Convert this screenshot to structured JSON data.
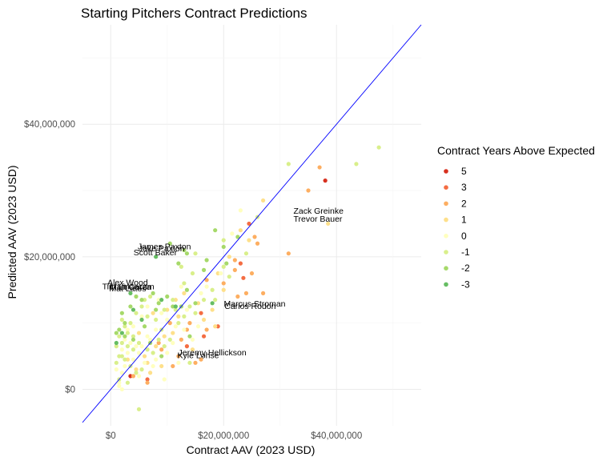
{
  "chart_data": {
    "type": "scatter",
    "title": "Starting Pitchers Contract Predictions",
    "xlabel": "Contract AAV (2023 USD)",
    "ylabel": "Predicted AAV (2023 USD)",
    "xlim": [
      -5000000,
      55000000
    ],
    "ylim": [
      -5500000,
      55000000
    ],
    "x_ticks": [
      0,
      20000000,
      40000000
    ],
    "x_tick_labels": [
      "$0",
      "$20,000,000",
      "$40,000,000"
    ],
    "y_ticks": [
      0,
      20000000,
      40000000
    ],
    "y_tick_labels": [
      "$0",
      "$20,000,000",
      "$40,000,000"
    ],
    "grid": true,
    "reference_line": {
      "slope": 1,
      "intercept": 0,
      "color": "#0000ff"
    },
    "legend": {
      "title": "Contract Years Above Expected",
      "position": "right",
      "entries": [
        {
          "label": "5",
          "color": "#d7301f"
        },
        {
          "label": "3",
          "color": "#f46d43"
        },
        {
          "label": "2",
          "color": "#fdae61"
        },
        {
          "label": "1",
          "color": "#fee08b"
        },
        {
          "label": "0",
          "color": "#ffffbf"
        },
        {
          "label": "-1",
          "color": "#d9ef8b"
        },
        {
          "label": "-2",
          "color": "#a6d96a"
        },
        {
          "label": "-3",
          "color": "#66bd63"
        }
      ]
    },
    "annotations": [
      {
        "label": "Zack Greinke",
        "x": 36800000,
        "y": 27000000
      },
      {
        "label": "Trevor Bauer",
        "x": 36700000,
        "y": 25800000
      },
      {
        "label": "James Paxton",
        "x": 9500000,
        "y": 21600000
      },
      {
        "label": "Jake Paxton",
        "x": 9000000,
        "y": 21300000
      },
      {
        "label": "Scott Baker",
        "x": 7900000,
        "y": 20700000
      },
      {
        "label": "Alex Wood",
        "x": 3000000,
        "y": 16200000
      },
      {
        "label": "Tim Lincecum",
        "x": 3100000,
        "y": 15600000
      },
      {
        "label": "Matt Garza",
        "x": 3500000,
        "y": 15500000
      },
      {
        "label": "Mat Latos",
        "x": 3000000,
        "y": 15300000
      },
      {
        "label": "Marcus Stroman",
        "x": 25500000,
        "y": 13000000
      },
      {
        "label": "Carlos Rodon",
        "x": 24700000,
        "y": 12600000
      },
      {
        "label": "Jeremy Hellickson",
        "x": 18000000,
        "y": 5600000
      },
      {
        "label": "Kyle Lohse",
        "x": 15500000,
        "y": 5200000
      }
    ],
    "series": [
      {
        "group": "5",
        "color": "#d7301f",
        "points": [
          [
            38000000,
            31500000
          ],
          [
            3500000,
            2000000
          ]
        ]
      },
      {
        "group": "3",
        "color": "#f46d43",
        "points": [
          [
            23000000,
            19000000
          ],
          [
            23500000,
            16800000
          ],
          [
            16000000,
            11500000
          ],
          [
            13500000,
            6500000
          ],
          [
            16500000,
            8000000
          ],
          [
            24500000,
            25000000
          ],
          [
            19000000,
            9500000
          ],
          [
            6500000,
            1500000
          ]
        ]
      },
      {
        "group": "2",
        "color": "#fdae61",
        "points": [
          [
            37000000,
            33500000
          ],
          [
            35000000,
            30000000
          ],
          [
            31500000,
            20500000
          ],
          [
            25500000,
            23000000
          ],
          [
            27000000,
            14500000
          ],
          [
            22500000,
            14000000
          ],
          [
            25000000,
            17500000
          ],
          [
            17000000,
            16500000
          ],
          [
            13500000,
            9000000
          ],
          [
            17000000,
            9000000
          ],
          [
            22000000,
            18000000
          ],
          [
            20000000,
            16000000
          ],
          [
            15000000,
            4000000
          ],
          [
            14000000,
            10000000
          ],
          [
            12500000,
            7500000
          ],
          [
            12000000,
            5000000
          ],
          [
            11000000,
            3500000
          ],
          [
            8500000,
            7000000
          ],
          [
            10500000,
            10000000
          ],
          [
            9000000,
            6000000
          ],
          [
            4000000,
            2000000
          ],
          [
            22000000,
            19500000
          ],
          [
            26000000,
            22000000
          ],
          [
            16000000,
            4500000
          ],
          [
            6500000,
            1000000
          ],
          [
            24000000,
            14500000
          ]
        ]
      },
      {
        "group": "1",
        "color": "#fee08b",
        "points": [
          [
            27000000,
            28500000
          ],
          [
            24500000,
            22500000
          ],
          [
            38500000,
            25000000
          ],
          [
            21000000,
            20000000
          ],
          [
            19000000,
            17500000
          ],
          [
            15500000,
            13000000
          ],
          [
            18000000,
            12000000
          ],
          [
            11000000,
            8500000
          ],
          [
            12000000,
            11000000
          ],
          [
            8000000,
            6500000
          ],
          [
            9500000,
            8000000
          ],
          [
            6500000,
            4000000
          ],
          [
            7000000,
            2500000
          ],
          [
            4500000,
            3000000
          ],
          [
            3000000,
            4500000
          ],
          [
            13000000,
            14500000
          ],
          [
            16500000,
            10500000
          ],
          [
            10000000,
            12000000
          ],
          [
            5000000,
            8500000
          ],
          [
            20000000,
            15000000
          ],
          [
            14500000,
            6000000
          ],
          [
            9000000,
            3500000
          ],
          [
            11500000,
            13500000
          ],
          [
            6000000,
            5000000
          ],
          [
            23000000,
            24000000
          ],
          [
            18500000,
            9500000
          ],
          [
            7500000,
            11500000
          ]
        ]
      },
      {
        "group": "0",
        "color": "#ffffbf",
        "points": [
          [
            23000000,
            27000000
          ],
          [
            19500000,
            17500000
          ],
          [
            16000000,
            14500000
          ],
          [
            13500000,
            12000000
          ],
          [
            11500000,
            9500000
          ],
          [
            10000000,
            10500000
          ],
          [
            9000000,
            11500000
          ],
          [
            8000000,
            9000000
          ],
          [
            7000000,
            7500000
          ],
          [
            6500000,
            8000000
          ],
          [
            5500000,
            6500000
          ],
          [
            5000000,
            5500000
          ],
          [
            4500000,
            6500000
          ],
          [
            4000000,
            4500000
          ],
          [
            3500000,
            7000000
          ],
          [
            3000000,
            5500000
          ],
          [
            2500000,
            3500000
          ],
          [
            2000000,
            2500000
          ],
          [
            1500000,
            500000
          ],
          [
            1000000,
            3000000
          ],
          [
            2000000,
            6000000
          ],
          [
            2500000,
            7500000
          ],
          [
            3000000,
            9000000
          ],
          [
            4000000,
            9500000
          ],
          [
            5500000,
            11000000
          ],
          [
            6500000,
            12500000
          ],
          [
            8500000,
            13500000
          ],
          [
            10000000,
            5500000
          ],
          [
            12000000,
            4000000
          ],
          [
            14500000,
            7500000
          ],
          [
            15500000,
            9500000
          ],
          [
            17000000,
            15500000
          ],
          [
            5000000,
            2000000
          ],
          [
            7500000,
            3500000
          ],
          [
            9500000,
            1500000
          ],
          [
            6000000,
            4000000
          ],
          [
            11000000,
            7000000
          ],
          [
            13000000,
            9000000
          ],
          [
            8000000,
            4500000
          ],
          [
            12500000,
            15500000
          ],
          [
            21500000,
            23500000
          ],
          [
            2000000,
            0
          ],
          [
            1500000,
            1000000
          ]
        ]
      },
      {
        "group": "-1",
        "color": "#d9ef8b",
        "points": [
          [
            31500000,
            34000000
          ],
          [
            43500000,
            34000000
          ],
          [
            47500000,
            36500000
          ],
          [
            26000000,
            26000000
          ],
          [
            20000000,
            22500000
          ],
          [
            15000000,
            20500000
          ],
          [
            14500000,
            17500000
          ],
          [
            13000000,
            16000000
          ],
          [
            11000000,
            13500000
          ],
          [
            9500000,
            12000000
          ],
          [
            8000000,
            10500000
          ],
          [
            6500000,
            11000000
          ],
          [
            5500000,
            12500000
          ],
          [
            4500000,
            11500000
          ],
          [
            3500000,
            10000000
          ],
          [
            3000000,
            8500000
          ],
          [
            2500000,
            9500000
          ],
          [
            2000000,
            7000000
          ],
          [
            1500000,
            8000000
          ],
          [
            1000000,
            6500000
          ],
          [
            1000000,
            4000000
          ],
          [
            1500000,
            5000000
          ],
          [
            2500000,
            4500000
          ],
          [
            3500000,
            3500000
          ],
          [
            4500000,
            2500000
          ],
          [
            5500000,
            3000000
          ],
          [
            6500000,
            6000000
          ],
          [
            7500000,
            5500000
          ],
          [
            8500000,
            7500000
          ],
          [
            9500000,
            6500000
          ],
          [
            10500000,
            7500000
          ],
          [
            12000000,
            10000000
          ],
          [
            13000000,
            11000000
          ],
          [
            14000000,
            12500000
          ],
          [
            15000000,
            11500000
          ],
          [
            16500000,
            13500000
          ],
          [
            18000000,
            15000000
          ],
          [
            20000000,
            18500000
          ],
          [
            21000000,
            17000000
          ],
          [
            6000000,
            13500000
          ],
          [
            7000000,
            14000000
          ],
          [
            4000000,
            6000000
          ],
          [
            5000000,
            7000000
          ],
          [
            3000000,
            6500000
          ],
          [
            2000000,
            5000000
          ],
          [
            1500000,
            1500000
          ],
          [
            3000000,
            1000000
          ],
          [
            4000000,
            8000000
          ],
          [
            9000000,
            9000000
          ],
          [
            11500000,
            12000000
          ],
          [
            5000000,
            -3000000
          ],
          [
            2000000,
            10500000
          ],
          [
            14000000,
            4000000
          ],
          [
            18500000,
            13500000
          ],
          [
            24000000,
            20500000
          ],
          [
            12500000,
            18500000
          ]
        ]
      },
      {
        "group": "-2",
        "color": "#a6d96a",
        "points": [
          [
            18500000,
            24000000
          ],
          [
            13000000,
            21000000
          ],
          [
            10500000,
            22000000
          ],
          [
            12000000,
            19000000
          ],
          [
            17000000,
            19500000
          ],
          [
            16500000,
            18000000
          ],
          [
            20000000,
            21500000
          ],
          [
            22500000,
            23000000
          ],
          [
            10000000,
            14000000
          ],
          [
            8500000,
            13000000
          ],
          [
            7500000,
            14500000
          ],
          [
            5500000,
            13500000
          ],
          [
            4500000,
            14000000
          ],
          [
            3500000,
            12500000
          ],
          [
            2000000,
            11500000
          ],
          [
            1500000,
            9000000
          ],
          [
            1000000,
            8500000
          ],
          [
            2500000,
            8000000
          ],
          [
            4000000,
            7500000
          ],
          [
            6000000,
            9500000
          ],
          [
            8000000,
            12000000
          ],
          [
            11000000,
            12500000
          ],
          [
            12500000,
            12500000
          ],
          [
            15000000,
            13000000
          ],
          [
            13500000,
            15000000
          ],
          [
            14000000,
            8000000
          ],
          [
            9000000,
            5000000
          ],
          [
            7000000,
            7000000
          ],
          [
            2500000,
            10000000
          ],
          [
            20500000,
            19000000
          ],
          [
            13500000,
            20500000
          ]
        ]
      },
      {
        "group": "-3",
        "color": "#66bd63",
        "points": [
          [
            8000000,
            20000000
          ],
          [
            3500000,
            14500000
          ],
          [
            11500000,
            12500000
          ],
          [
            9000000,
            13500000
          ],
          [
            18000000,
            13000000
          ],
          [
            5500000,
            10500000
          ],
          [
            2000000,
            8500000
          ],
          [
            1000000,
            7000000
          ],
          [
            4000000,
            12000000
          ]
        ]
      }
    ]
  }
}
